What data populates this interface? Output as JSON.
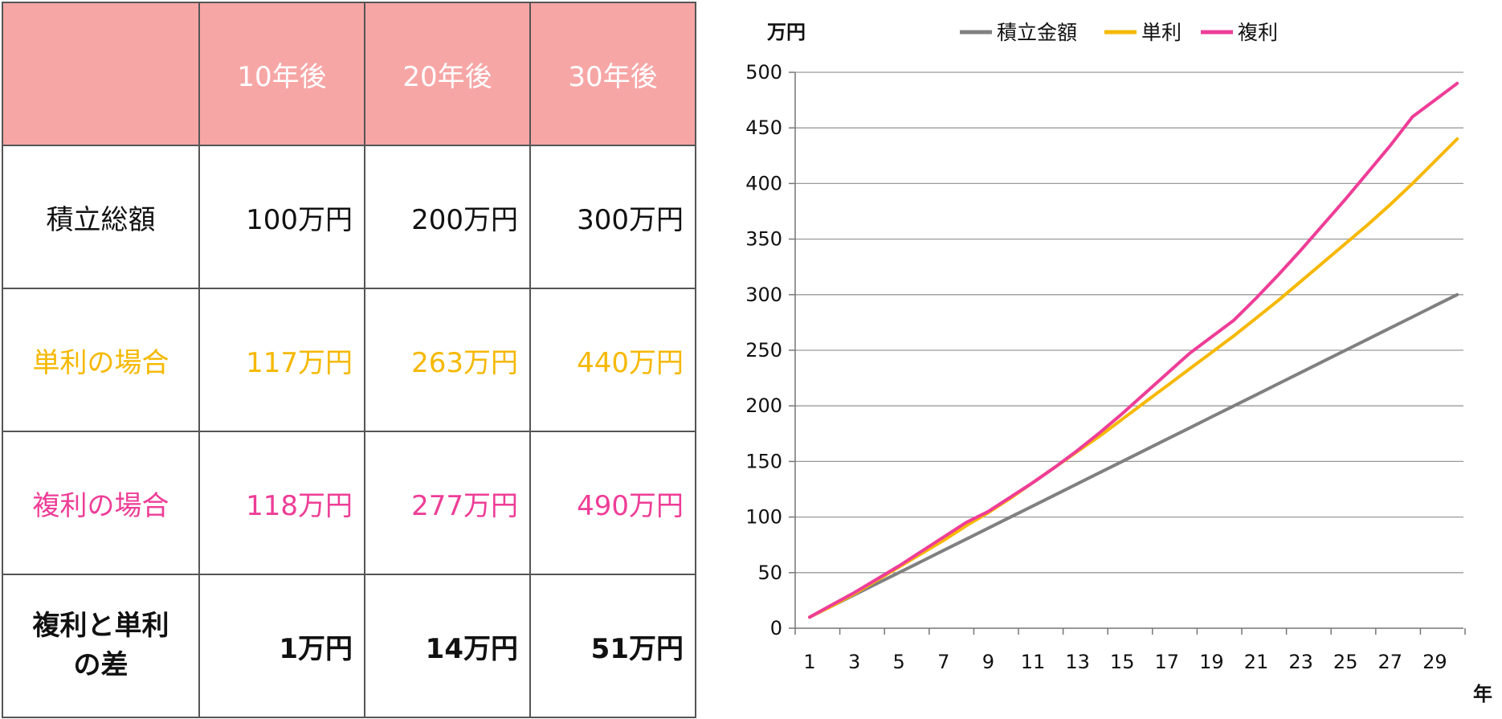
{
  "table": {
    "headers": [
      "",
      "10年後",
      "20年後",
      "30年後"
    ],
    "rows": [
      {
        "label": "積立総額",
        "values": [
          "100万円",
          "200万円",
          "300万円"
        ]
      },
      {
        "label": "単利の場合",
        "values": [
          "117万円",
          "263万円",
          "440万円"
        ]
      },
      {
        "label": "複利の場合",
        "values": [
          "118万円",
          "277万円",
          "490万円"
        ]
      },
      {
        "label_line1": "複利と単利",
        "label_line2": "の差",
        "values": [
          "1万円",
          "14万円",
          "51万円"
        ]
      }
    ],
    "colors": {
      "header_bg": "#f7a6a6",
      "simple": "#f6b800",
      "compound": "#ee3d97",
      "border": "#555555"
    }
  },
  "chart_data": {
    "type": "line",
    "ylabel": "万円",
    "xlabel": "年",
    "ylim": [
      0,
      500
    ],
    "xlim": [
      1,
      30
    ],
    "yticks": [
      0,
      50,
      100,
      150,
      200,
      250,
      300,
      350,
      400,
      450,
      500
    ],
    "xticks": [
      1,
      3,
      5,
      7,
      9,
      11,
      13,
      15,
      17,
      19,
      21,
      23,
      25,
      27,
      29
    ],
    "grid": true,
    "legend_position": "top",
    "x": [
      1,
      2,
      3,
      4,
      5,
      6,
      7,
      8,
      9,
      10,
      11,
      12,
      13,
      14,
      15,
      16,
      17,
      18,
      19,
      20,
      21,
      22,
      23,
      24,
      25,
      26,
      27,
      28,
      29,
      30
    ],
    "series": [
      {
        "name": "積立金額",
        "color": "#808080",
        "values": [
          10,
          20,
          30,
          40,
          50,
          60,
          70,
          80,
          90,
          100,
          110,
          120,
          130,
          140,
          150,
          160,
          170,
          180,
          190,
          200,
          210,
          220,
          230,
          240,
          250,
          260,
          270,
          280,
          290,
          300
        ]
      },
      {
        "name": "単利",
        "color": "#f6b800",
        "values": [
          10,
          20,
          31,
          43,
          55,
          67,
          79,
          92,
          104,
          117,
          131,
          145,
          159,
          173,
          188,
          203,
          218,
          233,
          248,
          263,
          279,
          295,
          312,
          329,
          346,
          363,
          381,
          400,
          420,
          440
        ]
      },
      {
        "name": "複利",
        "color": "#ee3d97",
        "values": [
          10,
          21,
          32,
          44,
          56,
          69,
          82,
          95,
          105,
          118,
          131,
          145,
          160,
          176,
          193,
          211,
          229,
          247,
          262,
          277,
          297,
          318,
          340,
          363,
          386,
          410,
          434,
          460,
          475,
          490
        ]
      }
    ]
  }
}
